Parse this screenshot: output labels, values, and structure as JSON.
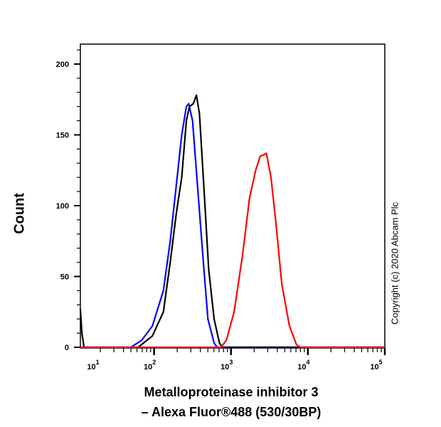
{
  "chart_data": {
    "type": "line",
    "title": "",
    "xlabel_line1": "Metalloproteinase inhibitor 3",
    "xlabel_line2": "– Alexa Fluor®488 (530/30BP)",
    "ylabel": "Count",
    "xscale": "log",
    "xlim": [
      11,
      100000
    ],
    "ylim": [
      0,
      215
    ],
    "x_ticks": [
      {
        "base": "10",
        "exp": "1",
        "value": 10
      },
      {
        "base": "10",
        "exp": "2",
        "value": 100
      },
      {
        "base": "10",
        "exp": "3",
        "value": 1000
      },
      {
        "base": "10",
        "exp": "4",
        "value": 10000
      },
      {
        "base": "10",
        "exp": "5",
        "value": 100000
      }
    ],
    "y_ticks": [
      "0",
      "50",
      "100",
      "150",
      "200"
    ],
    "y_tick_values": [
      0,
      50,
      100,
      150,
      200
    ],
    "grid": false,
    "series": [
      {
        "color": "#0000ff",
        "x": [
          11,
          50,
          69,
          95,
          132,
          162,
          195,
          229,
          263,
          282,
          316,
          372,
          437,
          501,
          603,
          661,
          100000
        ],
        "y": [
          0,
          0,
          5,
          15,
          40,
          75,
          115,
          150,
          170,
          172,
          160,
          110,
          60,
          20,
          3,
          0,
          0
        ]
      },
      {
        "color": "#000000",
        "x": [
          11,
          11.5,
          12.3,
          62,
          95,
          132,
          162,
          195,
          229,
          263,
          288,
          324,
          355,
          389,
          447,
          513,
          603,
          708,
          776,
          100000
        ],
        "y": [
          27,
          10,
          0,
          0,
          8,
          25,
          60,
          95,
          120,
          160,
          170,
          172,
          178,
          165,
          110,
          55,
          20,
          3,
          0,
          0
        ]
      },
      {
        "color": "#ff0000",
        "x": [
          11,
          741,
          871,
          1096,
          1413,
          1738,
          2089,
          2399,
          2692,
          2884,
          3311,
          3890,
          4571,
          5754,
          7079,
          7943,
          100000
        ],
        "y": [
          0,
          0,
          5,
          25,
          65,
          105,
          125,
          135,
          136,
          137,
          120,
          85,
          45,
          15,
          2,
          0,
          0
        ]
      }
    ]
  },
  "watermark": "Copyright (c) 2020 Abcam Plc"
}
